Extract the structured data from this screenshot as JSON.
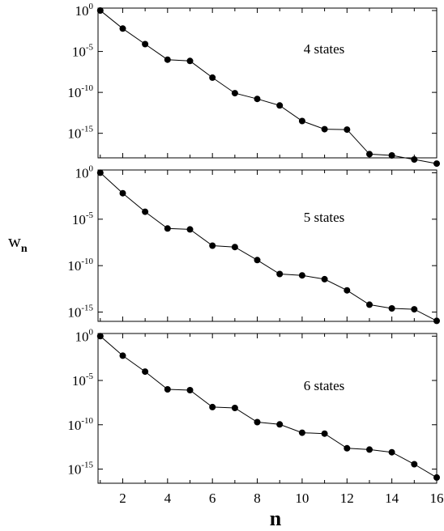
{
  "chart_data": [
    {
      "type": "line",
      "annotation": "4 states",
      "yscale": "log",
      "x": [
        1,
        2,
        3,
        4,
        5,
        6,
        7,
        8,
        9,
        10,
        11,
        12,
        13,
        14,
        15,
        16
      ],
      "values": [
        1,
        0.0063,
        7.9e-05,
        1e-06,
        7e-07,
        6.3e-09,
        7.94e-11,
        1.58e-11,
        2.5e-12,
        3.16e-14,
        3.16e-15,
        2.82e-15,
        2.82e-18,
        2e-18,
        6.3e-19,
        2e-19
      ],
      "xlim": [
        0.9,
        16
      ],
      "ylim_exp": [
        -18,
        0.3
      ],
      "yticks": [
        {
          "base": "10",
          "exp": "0",
          "value_exp": 0
        },
        {
          "base": "10",
          "exp": "-5",
          "value_exp": -5
        },
        {
          "base": "10",
          "exp": "-10",
          "value_exp": -10
        },
        {
          "base": "10",
          "exp": "-15",
          "value_exp": -15
        }
      ],
      "xticks": []
    },
    {
      "type": "line",
      "annotation": "5 states",
      "yscale": "log",
      "x": [
        1,
        2,
        3,
        4,
        5,
        6,
        7,
        8,
        9,
        10,
        11,
        12,
        13,
        14,
        15,
        16
      ],
      "values": [
        1,
        0.0063,
        6.3e-05,
        1e-06,
        8e-07,
        1.4e-08,
        1e-08,
        4e-10,
        1.26e-11,
        8.9e-12,
        3.5e-12,
        2.2e-13,
        6.3e-15,
        2.5e-15,
        2e-15,
        1.12e-16
      ],
      "xlim": [
        0.9,
        16
      ],
      "ylim_exp": [
        -16,
        0.3
      ],
      "yticks": [
        {
          "base": "10",
          "exp": "0",
          "value_exp": 0
        },
        {
          "base": "10",
          "exp": "-5",
          "value_exp": -5
        },
        {
          "base": "10",
          "exp": "-10",
          "value_exp": -10
        },
        {
          "base": "10",
          "exp": "-15",
          "value_exp": -15
        }
      ],
      "xticks": []
    },
    {
      "type": "line",
      "annotation": "6 states",
      "yscale": "log",
      "x": [
        1,
        2,
        3,
        4,
        5,
        6,
        7,
        8,
        9,
        10,
        11,
        12,
        13,
        14,
        15,
        16
      ],
      "values": [
        1,
        0.0063,
        0.0001,
        1e-06,
        8e-07,
        1e-08,
        7.9e-09,
        2e-10,
        1.1e-10,
        1.26e-11,
        1e-11,
        2.2e-13,
        1.6e-13,
        7.9e-14,
        3.5e-15,
        1.12e-16
      ],
      "xlim": [
        0.9,
        16
      ],
      "ylim_exp": [
        -16.6,
        0.3
      ],
      "yticks": [
        {
          "base": "10",
          "exp": "0",
          "value_exp": 0
        },
        {
          "base": "10",
          "exp": "-5",
          "value_exp": -5
        },
        {
          "base": "10",
          "exp": "-10",
          "value_exp": -10
        },
        {
          "base": "10",
          "exp": "-15",
          "value_exp": -15
        }
      ],
      "xticks": [
        {
          "label": "2",
          "value": 2
        },
        {
          "label": "4",
          "value": 4
        },
        {
          "label": "6",
          "value": 6
        },
        {
          "label": "8",
          "value": 8
        },
        {
          "label": "10",
          "value": 10
        },
        {
          "label": "12",
          "value": 12
        },
        {
          "label": "14",
          "value": 14
        },
        {
          "label": "16",
          "value": 16
        }
      ]
    }
  ],
  "ylabel": {
    "main": "w",
    "sub": "n"
  },
  "xlabel": "n",
  "colors": {
    "line": "#000000",
    "marker": "#000000",
    "background": "#ffffff"
  }
}
